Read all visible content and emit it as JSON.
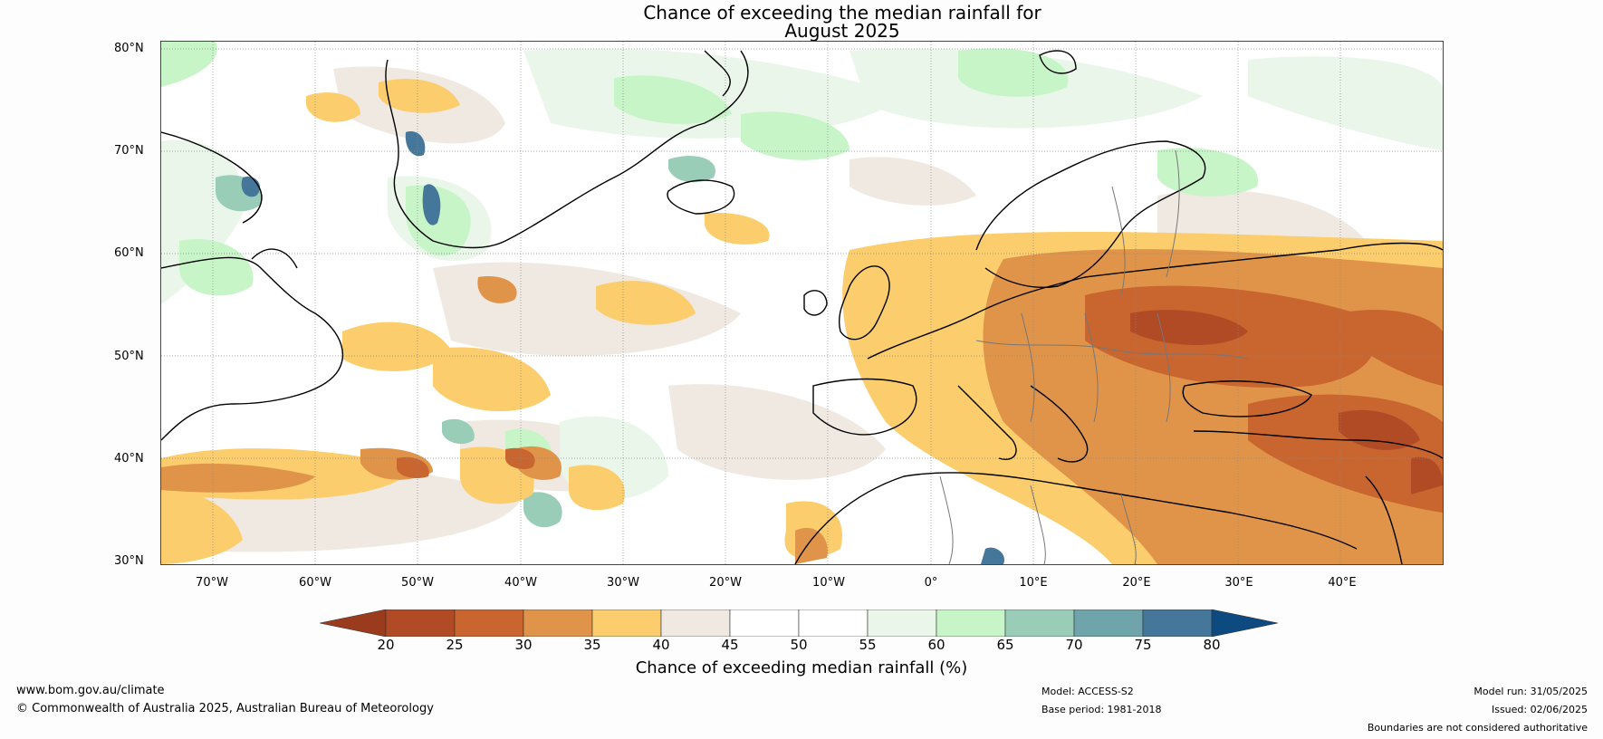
{
  "title": {
    "line1": "Chance of exceeding the median rainfall for",
    "line2": "August 2025"
  },
  "map": {
    "region": "North Atlantic and Europe",
    "latitude_labels": [
      "80°N",
      "70°N",
      "60°N",
      "50°N",
      "40°N",
      "30°N"
    ],
    "longitude_labels": [
      "70°W",
      "60°W",
      "50°W",
      "40°W",
      "30°W",
      "20°W",
      "10°W",
      "0°",
      "10°E",
      "20°E",
      "30°E",
      "40°E"
    ]
  },
  "colorbar": {
    "label": "Chance of exceeding median rainfall (%)",
    "ticks": [
      "20",
      "25",
      "30",
      "35",
      "40",
      "45",
      "50",
      "55",
      "60",
      "65",
      "70",
      "75",
      "80"
    ],
    "under_color": "#9a3b1d",
    "over_color": "#0d4a80",
    "colors": [
      "#b04b26",
      "#c9652e",
      "#e0944a",
      "#fbcd6c",
      "#efe9e2",
      "#ffffff",
      "#ffffff",
      "#e9f6e9",
      "#c8f5c8",
      "#99cdb8",
      "#6fa5aa",
      "#45779a"
    ]
  },
  "footer": {
    "website": "www.bom.gov.au/climate",
    "copyright": "© Commonwealth of Australia 2025, Australian Bureau of Meteorology",
    "model": "Model: ACCESS-S2",
    "base_period": "Base period: 1981-2018",
    "model_run": "Model run: 31/05/2025",
    "issued": "Issued: 02/06/2025",
    "disclaimer": "Boundaries are not considered authoritative"
  }
}
